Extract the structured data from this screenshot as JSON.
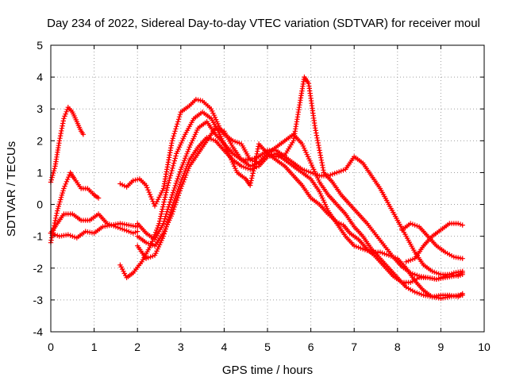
{
  "chart_data": {
    "type": "scatter",
    "title": "Day 234 of 2022, Sidereal Day-to-day VTEC variation (SDTVAR) for receiver moul",
    "xlabel": "GPS time / hours",
    "ylabel": "SDTVAR / TECUs",
    "xlim": [
      0,
      10
    ],
    "ylim": [
      -4,
      5
    ],
    "xticks": [
      "0",
      "1",
      "2",
      "3",
      "4",
      "5",
      "6",
      "7",
      "8",
      "9",
      "10"
    ],
    "yticks": [
      "-4",
      "-3",
      "-2",
      "-1",
      "0",
      "1",
      "2",
      "3",
      "4",
      "5"
    ],
    "grid": true,
    "marker": "plus",
    "color": "#ff0000",
    "series": [
      {
        "name": "s1",
        "x": [
          0.0,
          0.1,
          0.2,
          0.3,
          0.4,
          0.5,
          0.6,
          0.7,
          0.75
        ],
        "y": [
          0.7,
          1.2,
          2.0,
          2.7,
          3.05,
          2.9,
          2.6,
          2.3,
          2.2
        ]
      },
      {
        "name": "s2",
        "x": [
          0.0,
          0.15,
          0.3,
          0.45,
          0.55,
          0.7,
          0.85,
          1.0,
          1.1
        ],
        "y": [
          -1.2,
          -0.2,
          0.5,
          1.0,
          0.8,
          0.5,
          0.5,
          0.3,
          0.2
        ]
      },
      {
        "name": "s3",
        "x": [
          0.0,
          0.1,
          0.3,
          0.5,
          0.7,
          0.9,
          1.1,
          1.3,
          1.5,
          1.7,
          1.9,
          2.0
        ],
        "y": [
          -0.9,
          -0.7,
          -0.3,
          -0.3,
          -0.5,
          -0.5,
          -0.3,
          -0.6,
          -0.7,
          -0.8,
          -0.9,
          -0.85
        ]
      },
      {
        "name": "s4",
        "x": [
          0.0,
          0.2,
          0.4,
          0.6,
          0.8,
          1.0,
          1.2,
          1.4,
          1.6,
          1.8,
          2.0
        ],
        "y": [
          -0.9,
          -1.0,
          -0.95,
          -1.05,
          -0.85,
          -0.9,
          -0.7,
          -0.65,
          -0.6,
          -0.65,
          -0.7
        ]
      },
      {
        "name": "s5",
        "x": [
          1.6,
          1.75,
          1.9,
          2.05,
          2.2,
          2.4,
          2.6,
          2.8,
          3.0,
          3.2,
          3.35,
          3.5,
          3.7,
          3.9,
          4.0,
          4.2,
          4.4,
          4.6,
          4.8,
          5.0,
          5.2,
          5.4,
          5.6,
          5.75,
          5.85,
          5.95,
          6.1,
          6.3,
          6.5,
          6.7,
          6.9,
          7.1,
          7.3,
          7.5,
          7.7,
          7.9,
          8.1,
          8.3,
          8.5,
          8.7,
          8.9,
          9.1,
          9.3,
          9.5
        ],
        "y": [
          0.65,
          0.55,
          0.75,
          0.8,
          0.6,
          -0.05,
          0.5,
          2.0,
          2.9,
          3.1,
          3.3,
          3.25,
          3.0,
          2.4,
          2.2,
          2.0,
          1.9,
          1.4,
          1.3,
          1.6,
          1.5,
          1.55,
          2.0,
          3.2,
          4.0,
          3.8,
          2.4,
          1.0,
          0.7,
          0.3,
          0.0,
          -0.3,
          -0.6,
          -0.95,
          -1.3,
          -1.65,
          -1.95,
          -2.15,
          -2.25,
          -2.3,
          -2.35,
          -2.3,
          -2.25,
          -2.15
        ]
      },
      {
        "name": "s6",
        "x": [
          1.6,
          1.75,
          1.9,
          2.1,
          2.3,
          2.5,
          2.7,
          2.9,
          3.1,
          3.3,
          3.5,
          3.7,
          3.9,
          4.1,
          4.3,
          4.5,
          4.6,
          4.7,
          4.8,
          5.0,
          5.2,
          5.4,
          5.6,
          5.8,
          6.0,
          6.2,
          6.4,
          6.6,
          6.75,
          6.9,
          7.1,
          7.3,
          7.5,
          7.7,
          7.9,
          8.1,
          8.3,
          8.5,
          8.7,
          8.9,
          9.1,
          9.3,
          9.5
        ],
        "y": [
          -1.9,
          -2.3,
          -2.15,
          -1.8,
          -1.3,
          -0.6,
          0.6,
          1.6,
          2.2,
          2.7,
          2.9,
          2.7,
          2.2,
          1.6,
          1.0,
          0.8,
          0.6,
          1.2,
          1.9,
          1.6,
          1.4,
          1.2,
          0.9,
          0.6,
          0.2,
          0.0,
          -0.3,
          -0.55,
          -0.65,
          -0.9,
          -1.1,
          -1.4,
          -1.65,
          -1.95,
          -2.25,
          -2.45,
          -2.45,
          -2.3,
          -2.3,
          -2.35,
          -2.25,
          -2.15,
          -2.1
        ]
      },
      {
        "name": "s7",
        "x": [
          2.0,
          2.2,
          2.4,
          2.6,
          2.8,
          3.0,
          3.2,
          3.4,
          3.6,
          3.8,
          4.0,
          4.2,
          4.4,
          4.6,
          4.8,
          5.0,
          5.2,
          5.4,
          5.6,
          5.8,
          6.0,
          6.2,
          6.4,
          6.6,
          6.8,
          7.0,
          7.2,
          7.4,
          7.6,
          7.8,
          8.0,
          8.2,
          8.4,
          8.6,
          8.8,
          9.0,
          9.2,
          9.4,
          9.5
        ],
        "y": [
          -1.0,
          -1.2,
          -1.3,
          -0.9,
          -0.3,
          0.5,
          1.2,
          1.6,
          2.0,
          2.4,
          2.3,
          1.8,
          1.4,
          1.2,
          1.3,
          1.6,
          1.8,
          2.0,
          2.2,
          1.9,
          1.3,
          0.7,
          0.3,
          0.0,
          -0.3,
          -0.7,
          -1.0,
          -1.4,
          -1.7,
          -2.0,
          -2.3,
          -2.6,
          -2.75,
          -2.85,
          -2.9,
          -2.85,
          -2.85,
          -2.9,
          -2.8
        ]
      },
      {
        "name": "s8",
        "x": [
          2.0,
          2.2,
          2.4,
          2.6,
          2.8,
          3.0,
          3.2,
          3.4,
          3.6,
          3.8,
          4.0,
          4.2,
          4.4,
          4.6,
          4.8,
          5.0,
          5.2,
          5.4,
          5.6,
          5.8,
          6.0,
          6.2,
          6.4,
          6.6,
          6.8,
          7.0,
          7.2,
          7.4,
          7.6,
          7.8,
          8.0,
          8.2,
          8.4,
          8.6,
          8.8,
          9.0,
          9.2,
          9.4,
          9.5
        ],
        "y": [
          -1.3,
          -1.7,
          -1.6,
          -1.0,
          -0.1,
          0.7,
          1.4,
          1.8,
          2.1,
          2.0,
          1.7,
          1.4,
          1.2,
          1.1,
          1.2,
          1.5,
          1.6,
          1.4,
          1.2,
          1.0,
          0.8,
          0.4,
          -0.2,
          -0.6,
          -1.0,
          -1.3,
          -1.4,
          -1.5,
          -1.5,
          -1.6,
          -1.7,
          -2.0,
          -2.4,
          -2.7,
          -2.9,
          -2.95,
          -2.9,
          -2.85,
          -2.85
        ]
      },
      {
        "name": "s9",
        "x": [
          2.0,
          2.2,
          2.4,
          2.6,
          2.8,
          3.0,
          3.2,
          3.4,
          3.6,
          3.8,
          4.0,
          4.2,
          4.4,
          4.6,
          4.8,
          5.0,
          5.2,
          5.4,
          5.6,
          5.8,
          6.0,
          6.2,
          6.4,
          6.6,
          6.8,
          7.0,
          7.2,
          7.4,
          7.6,
          7.8,
          8.0,
          8.2,
          8.4,
          8.6,
          8.8,
          9.0,
          9.2,
          9.4,
          9.5
        ],
        "y": [
          -0.6,
          -0.9,
          -1.1,
          -0.6,
          0.3,
          1.1,
          1.8,
          2.4,
          2.6,
          2.2,
          1.9,
          1.6,
          1.4,
          1.4,
          1.5,
          1.7,
          1.7,
          1.5,
          1.3,
          1.1,
          1.0,
          0.9,
          0.9,
          1.0,
          1.1,
          1.5,
          1.3,
          0.9,
          0.5,
          0.0,
          -0.5,
          -1.0,
          -1.5,
          -1.9,
          -2.1,
          -2.2,
          -2.2,
          -2.25,
          -2.2
        ]
      },
      {
        "name": "s10",
        "x": [
          8.1,
          8.3,
          8.5,
          8.7,
          8.9,
          9.1,
          9.3,
          9.5
        ],
        "y": [
          -0.8,
          -0.6,
          -0.7,
          -1.0,
          -1.3,
          -1.5,
          -1.65,
          -1.7
        ]
      },
      {
        "name": "s11",
        "x": [
          8.2,
          8.4,
          8.6,
          8.8,
          9.0,
          9.2,
          9.4,
          9.5
        ],
        "y": [
          -1.8,
          -1.7,
          -1.3,
          -1.0,
          -0.8,
          -0.6,
          -0.6,
          -0.65
        ]
      }
    ]
  }
}
